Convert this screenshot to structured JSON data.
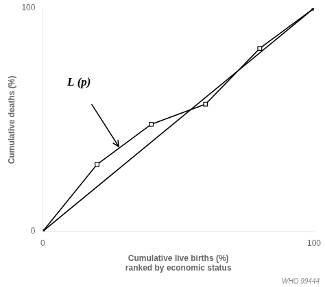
{
  "chart_data": {
    "type": "line",
    "series": [
      {
        "x": [
          0,
          100
        ],
        "values": [
          0,
          100
        ],
        "color": "black",
        "marker": "none"
      },
      {
        "x": [
          0,
          20,
          40,
          60,
          80,
          100
        ],
        "values": [
          0,
          30,
          48,
          57,
          82,
          100
        ],
        "color": "black",
        "marker": "square"
      }
    ],
    "xlabel": [
      "Cumulative live births (%)",
      "ranked by economic status"
    ],
    "ylabel": "Cumulative deaths (%)",
    "xlim": [
      0,
      100
    ],
    "ylim": [
      0,
      100
    ],
    "xticks": [
      0,
      100
    ],
    "yticks": [
      0,
      100
    ],
    "grid": false,
    "annotations": [
      {
        "text": "L (p)",
        "x": 9,
        "y": 64,
        "arrow_from": [
          18,
          57
        ],
        "arrow_to": [
          28,
          38
        ]
      }
    ],
    "watermark": "WHO 99444"
  }
}
